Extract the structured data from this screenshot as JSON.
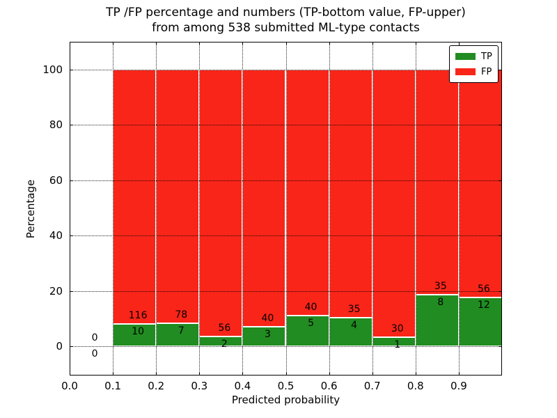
{
  "figure": {
    "title_line1": "TP /FP percentage and numbers (TP-bottom value, FP-upper)",
    "title_line2": "from among 538 submitted ML-type contacts",
    "xlabel": "Predicted probability",
    "ylabel": "Percentage"
  },
  "legend": {
    "position": "upper right",
    "items": [
      {
        "label": "TP",
        "color": "#218C21"
      },
      {
        "label": "FP",
        "color": "#F92519"
      }
    ]
  },
  "colors": {
    "tp": "#218C21",
    "fp": "#F92519",
    "bar_edge": "#ffffff",
    "grid": "#000000",
    "text": "#000000",
    "background": "#ffffff"
  },
  "chart_data": {
    "type": "bar",
    "stacked": true,
    "normalized_to_percent": true,
    "title": "TP /FP percentage and numbers (TP-bottom value, FP-upper) from among 538 submitted ML-type contacts",
    "xlabel": "Predicted probability",
    "ylabel": "Percentage",
    "xlim": [
      0.0,
      1.0
    ],
    "ylim": [
      -10.6,
      110.1
    ],
    "x_ticks": [
      0.0,
      0.1,
      0.2,
      0.3,
      0.4,
      0.5,
      0.6,
      0.7,
      0.8,
      0.9
    ],
    "x_tick_labels": [
      "0.0",
      "0.1",
      "0.2",
      "0.3",
      "0.4",
      "0.5",
      "0.6",
      "0.7",
      "0.8",
      "0.9"
    ],
    "y_ticks": [
      0,
      20,
      40,
      60,
      80,
      100
    ],
    "y_tick_labels": [
      "0",
      "20",
      "40",
      "60",
      "80",
      "100"
    ],
    "grid": true,
    "legend_position": "upper right",
    "total_contacts": 538,
    "series": [
      {
        "name": "TP",
        "color": "#218C21"
      },
      {
        "name": "FP",
        "color": "#F92519"
      }
    ],
    "bins": [
      {
        "range": [
          0.0,
          0.1
        ],
        "tp_count": 0,
        "fp_count": 0,
        "tp_percent": 0
      },
      {
        "range": [
          0.1,
          0.2
        ],
        "tp_count": 10,
        "fp_count": 116,
        "tp_percent": 7.94
      },
      {
        "range": [
          0.2,
          0.3
        ],
        "tp_count": 7,
        "fp_count": 78,
        "tp_percent": 8.24
      },
      {
        "range": [
          0.3,
          0.4
        ],
        "tp_count": 2,
        "fp_count": 56,
        "tp_percent": 3.45
      },
      {
        "range": [
          0.4,
          0.5
        ],
        "tp_count": 3,
        "fp_count": 40,
        "tp_percent": 6.98
      },
      {
        "range": [
          0.5,
          0.6
        ],
        "tp_count": 5,
        "fp_count": 40,
        "tp_percent": 11.11
      },
      {
        "range": [
          0.6,
          0.7
        ],
        "tp_count": 4,
        "fp_count": 35,
        "tp_percent": 10.26
      },
      {
        "range": [
          0.7,
          0.8
        ],
        "tp_count": 1,
        "fp_count": 30,
        "tp_percent": 3.23
      },
      {
        "range": [
          0.8,
          0.9
        ],
        "tp_count": 8,
        "fp_count": 35,
        "tp_percent": 18.6
      },
      {
        "range": [
          0.9,
          1.0
        ],
        "tp_count": 12,
        "fp_count": 56,
        "tp_percent": 17.65
      }
    ]
  }
}
